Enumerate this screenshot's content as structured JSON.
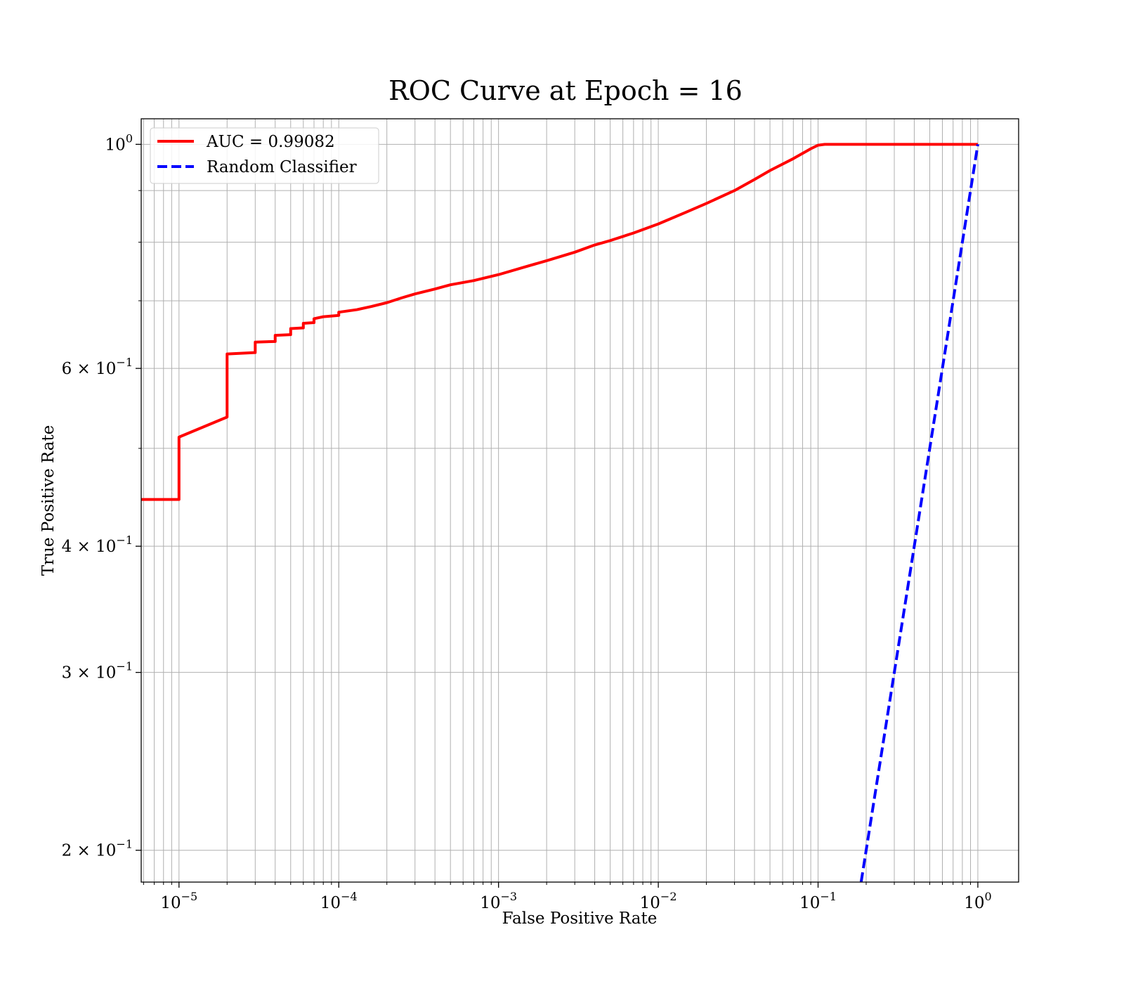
{
  "chart_data": {
    "type": "line",
    "title": "ROC Curve at Epoch = 16",
    "xlabel": "False Positive Rate",
    "ylabel": "True Positive Rate",
    "xscale": "log",
    "yscale": "log",
    "xlim": [
      5.8e-06,
      1.8
    ],
    "ylim": [
      0.186,
      1.06
    ],
    "grid": true,
    "grid_which": "both",
    "legend_position": "top-left",
    "x_ticks": [
      {
        "value": 1e-05,
        "base": "10",
        "exp": "−5"
      },
      {
        "value": 0.0001,
        "base": "10",
        "exp": "−4"
      },
      {
        "value": 0.001,
        "base": "10",
        "exp": "−3"
      },
      {
        "value": 0.01,
        "base": "10",
        "exp": "−2"
      },
      {
        "value": 0.1,
        "base": "10",
        "exp": "−1"
      },
      {
        "value": 1,
        "base": "10",
        "exp": "0"
      }
    ],
    "y_ticks": [
      {
        "value": 1.0,
        "base": "10",
        "exp": "0"
      },
      {
        "value": 0.6,
        "base": "6 × 10",
        "exp": "−1"
      },
      {
        "value": 0.4,
        "base": "4 × 10",
        "exp": "−1"
      },
      {
        "value": 0.3,
        "base": "3 × 10",
        "exp": "−1"
      },
      {
        "value": 0.2,
        "base": "2 × 10",
        "exp": "−1"
      }
    ],
    "y_minor_ticks": [
      0.5,
      0.7,
      0.8,
      0.9
    ],
    "series": [
      {
        "name": "AUC = 0.99082",
        "color": "#ff0000",
        "style": "solid",
        "x": [
          5.8e-06,
          1e-05,
          1e-05,
          2e-05,
          2e-05,
          3e-05,
          3e-05,
          4e-05,
          4e-05,
          5e-05,
          5e-05,
          6e-05,
          6e-05,
          7e-05,
          7e-05,
          8e-05,
          0.0001,
          0.0001,
          0.00013,
          0.00016,
          0.0002,
          0.00025,
          0.0003,
          0.0004,
          0.0005,
          0.0007,
          0.001,
          0.0015,
          0.002,
          0.003,
          0.004,
          0.005,
          0.007,
          0.01,
          0.015,
          0.02,
          0.03,
          0.04,
          0.05,
          0.07,
          0.09,
          0.1,
          0.11,
          0.12,
          0.2,
          0.5,
          1.0
        ],
        "y": [
          0.445,
          0.445,
          0.513,
          0.537,
          0.62,
          0.622,
          0.637,
          0.638,
          0.647,
          0.648,
          0.657,
          0.658,
          0.665,
          0.666,
          0.672,
          0.675,
          0.677,
          0.682,
          0.686,
          0.691,
          0.697,
          0.705,
          0.711,
          0.719,
          0.726,
          0.733,
          0.743,
          0.757,
          0.767,
          0.782,
          0.795,
          0.803,
          0.817,
          0.834,
          0.857,
          0.874,
          0.9,
          0.923,
          0.942,
          0.968,
          0.99,
          0.998,
          1.0,
          1.0,
          1.0,
          1.0,
          1.0
        ]
      },
      {
        "name": "Random Classifier",
        "color": "#0000ff",
        "style": "dashed",
        "x": [
          0.186,
          1.0
        ],
        "y": [
          0.186,
          1.0
        ]
      }
    ]
  }
}
